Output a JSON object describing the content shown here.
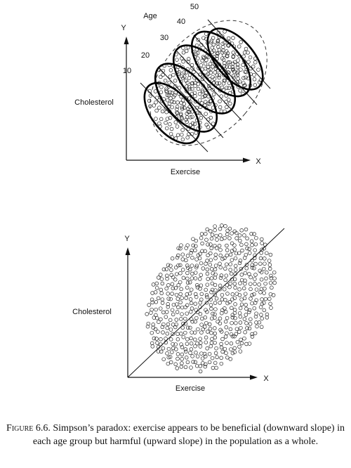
{
  "chart_data": [
    {
      "type": "scatter",
      "xlabel": "Exercise",
      "ylabel": "Cholesterol",
      "x_axis_letter": "X",
      "y_axis_letter": "Y",
      "legend_title": "Age",
      "groups": [
        "10",
        "20",
        "30",
        "40",
        "50"
      ],
      "within_group_trend": "downward",
      "overall_trend": "upward"
    },
    {
      "type": "scatter",
      "xlabel": "Exercise",
      "ylabel": "Cholesterol",
      "x_axis_letter": "X",
      "y_axis_letter": "Y",
      "overall_trend": "upward"
    }
  ],
  "caption": {
    "figure_label": "Figure",
    "text": " 6.6. Simpson’s paradox: exercise appears to be beneficial (downward slope) in each age group but harmful (upward slope) in the population as a whole."
  }
}
